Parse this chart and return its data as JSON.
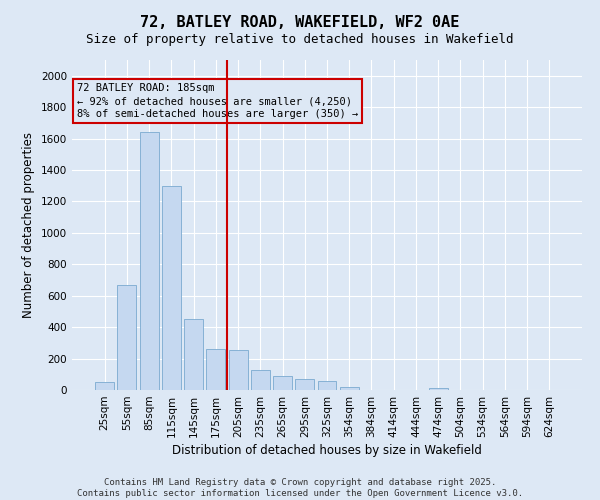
{
  "title": "72, BATLEY ROAD, WAKEFIELD, WF2 0AE",
  "subtitle": "Size of property relative to detached houses in Wakefield",
  "xlabel": "Distribution of detached houses by size in Wakefield",
  "ylabel": "Number of detached properties",
  "footer_line1": "Contains HM Land Registry data © Crown copyright and database right 2025.",
  "footer_line2": "Contains public sector information licensed under the Open Government Licence v3.0.",
  "annotation_label": "72 BATLEY ROAD: 185sqm",
  "annotation_line2": "← 92% of detached houses are smaller (4,250)",
  "annotation_line3": "8% of semi-detached houses are larger (350) →",
  "bar_color": "#c5d8f0",
  "bar_edge_color": "#7aaad0",
  "vline_color": "#cc0000",
  "annotation_box_edgecolor": "#cc0000",
  "bg_color": "#dde8f5",
  "grid_color": "#ffffff",
  "categories": [
    "25sqm",
    "55sqm",
    "85sqm",
    "115sqm",
    "145sqm",
    "175sqm",
    "205sqm",
    "235sqm",
    "265sqm",
    "295sqm",
    "325sqm",
    "354sqm",
    "384sqm",
    "414sqm",
    "444sqm",
    "474sqm",
    "504sqm",
    "534sqm",
    "564sqm",
    "594sqm",
    "624sqm"
  ],
  "values": [
    50,
    670,
    1640,
    1300,
    450,
    260,
    255,
    130,
    90,
    70,
    55,
    20,
    0,
    0,
    0,
    15,
    0,
    0,
    0,
    0,
    0
  ],
  "vline_position": 5.5,
  "ylim": [
    0,
    2100
  ],
  "yticks": [
    0,
    200,
    400,
    600,
    800,
    1000,
    1200,
    1400,
    1600,
    1800,
    2000
  ],
  "title_fontsize": 11,
  "subtitle_fontsize": 9,
  "axis_label_fontsize": 8.5,
  "tick_fontsize": 7.5,
  "annotation_fontsize": 7.5,
  "footer_fontsize": 6.5
}
